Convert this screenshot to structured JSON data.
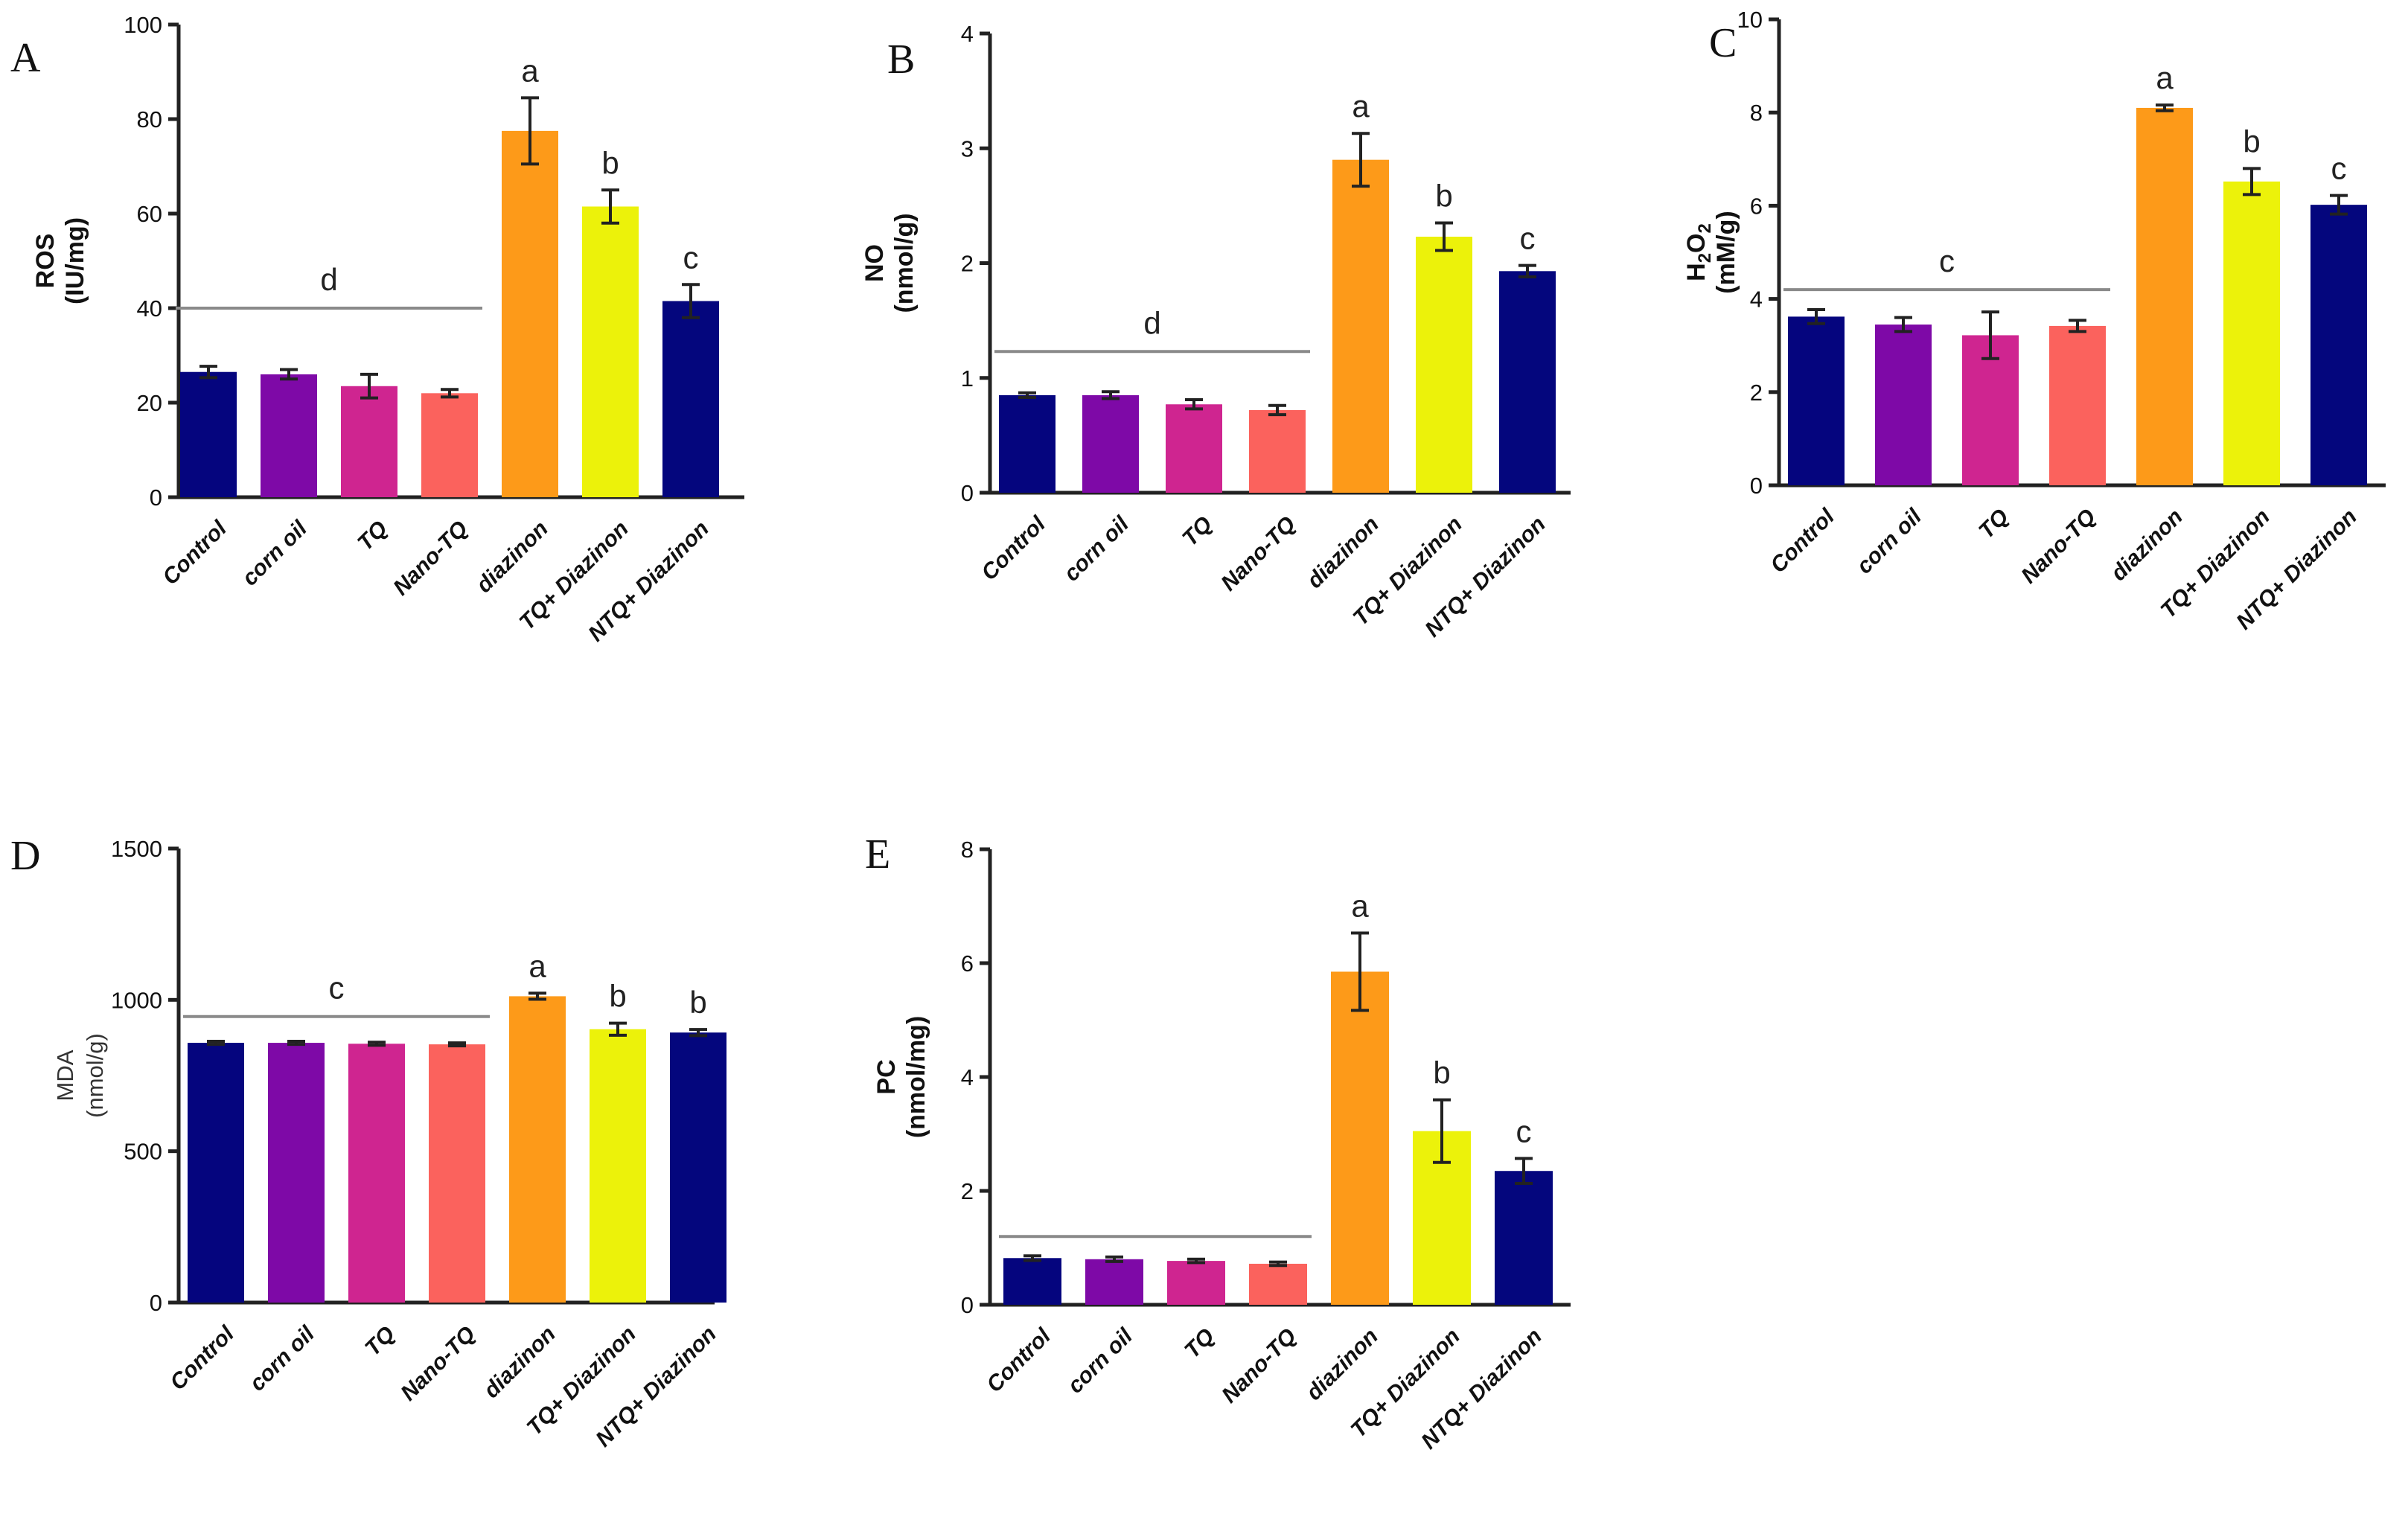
{
  "figure": {
    "colors": {
      "Control": "#05057e",
      "corn oil": "#7e09a7",
      "TQ": "#cf2590",
      "Nano-TQ": "#fb625d",
      "diazinon": "#fd9a19",
      "TQ+ Diazinon": "#ecf20a",
      "NTQ+ Diazinon": "#04067d"
    }
  },
  "chart_data": [
    {
      "panel": "A",
      "type": "bar",
      "ylabel": "ROS",
      "yunit": "(IU/mg)",
      "ylabel_style": "bold",
      "ylim": [
        0,
        100
      ],
      "ticks": [
        "0",
        "20",
        "40",
        "60",
        "80",
        "100"
      ],
      "categories": [
        "Control",
        "corn oil",
        "TQ",
        "Nano-TQ",
        "diazinon",
        "TQ+ Diazinon",
        "NTQ+ Diazinon"
      ],
      "values": [
        26.5,
        26,
        23.5,
        22,
        77.5,
        61.5,
        41.5
      ],
      "errors": [
        1.2,
        1,
        2.5,
        0.8,
        7,
        3.5,
        3.5
      ],
      "sig": [
        "",
        "",
        "",
        "",
        "a",
        "b",
        "c"
      ],
      "group": {
        "letter": "d",
        "from": 0,
        "to": 3,
        "y": 40
      }
    },
    {
      "panel": "B",
      "type": "bar",
      "ylabel": "NO",
      "yunit": "(nmol/g)",
      "ylabel_style": "bold",
      "ylim": [
        0,
        4
      ],
      "ticks": [
        "0",
        "1",
        "2",
        "3",
        "4"
      ],
      "categories": [
        "Control",
        "corn oil",
        "TQ",
        "Nano-TQ",
        "diazinon",
        "TQ+ Diazinon",
        "NTQ+ Diazinon"
      ],
      "values": [
        0.85,
        0.85,
        0.77,
        0.72,
        2.9,
        2.23,
        1.93
      ],
      "errors": [
        0.02,
        0.03,
        0.04,
        0.04,
        0.23,
        0.12,
        0.05
      ],
      "sig": [
        "",
        "",
        "",
        "",
        "a",
        "b",
        "c"
      ],
      "group": {
        "letter": "d",
        "from": 0,
        "to": 3,
        "y": 1.23
      }
    },
    {
      "panel": "C",
      "type": "bar",
      "ylabel": "H",
      "ylabel_sub": "2",
      "ylabel_mid": "O",
      "ylabel_sub2": "2",
      "yunit": "(mM/g)",
      "ylabel_style": "bold",
      "ylim": [
        0,
        10
      ],
      "ticks": [
        "0",
        "2",
        "4",
        "6",
        "8",
        "10"
      ],
      "categories": [
        "Control",
        "corn oil",
        "TQ",
        "Nano-TQ",
        "diazinon",
        "TQ+ Diazinon",
        "NTQ+ Diazinon"
      ],
      "values": [
        3.62,
        3.45,
        3.22,
        3.42,
        8.1,
        6.52,
        6.02
      ],
      "errors": [
        0.15,
        0.15,
        0.5,
        0.12,
        0.06,
        0.28,
        0.2
      ],
      "sig": [
        "",
        "",
        "",
        "",
        "a",
        "b",
        "c"
      ],
      "group": {
        "letter": "c",
        "from": 0,
        "to": 3,
        "y": 4.2
      }
    },
    {
      "panel": "D",
      "type": "bar",
      "ylabel": "MDA",
      "yunit": "(nmol/g)",
      "ylabel_style": "light",
      "ylim": [
        0,
        1500
      ],
      "ticks": [
        "0",
        "500",
        "1000",
        "1500"
      ],
      "categories": [
        "Control",
        "corn oil",
        "TQ",
        "Nano-TQ",
        "diazinon",
        "TQ+ Diazinon",
        "NTQ+ Diazinon"
      ],
      "values": [
        858,
        858,
        855,
        853,
        1012,
        903,
        892
      ],
      "errors": [
        5,
        5,
        5,
        5,
        10,
        20,
        10
      ],
      "sig": [
        "",
        "",
        "",
        "",
        "a",
        "b",
        "b"
      ],
      "group": {
        "letter": "c",
        "from": 0,
        "to": 3,
        "y": 945
      }
    },
    {
      "panel": "E",
      "type": "bar",
      "ylabel": "PC",
      "yunit": "(nmol/mg)",
      "ylabel_style": "bold",
      "ylim": [
        0,
        8
      ],
      "ticks": [
        "0",
        "2",
        "4",
        "6",
        "8"
      ],
      "categories": [
        "Control",
        "corn oil",
        "TQ",
        "Nano-TQ",
        "diazinon",
        "TQ+ Diazinon",
        "NTQ+ Diazinon"
      ],
      "values": [
        0.82,
        0.8,
        0.77,
        0.72,
        5.85,
        3.05,
        2.35
      ],
      "errors": [
        0.04,
        0.04,
        0.03,
        0.03,
        0.68,
        0.55,
        0.22
      ],
      "sig": [
        "",
        "",
        "",
        "",
        "a",
        "b",
        "c"
      ],
      "group": {
        "letter": "",
        "from": 0,
        "to": 3,
        "y": 1.2
      }
    }
  ]
}
